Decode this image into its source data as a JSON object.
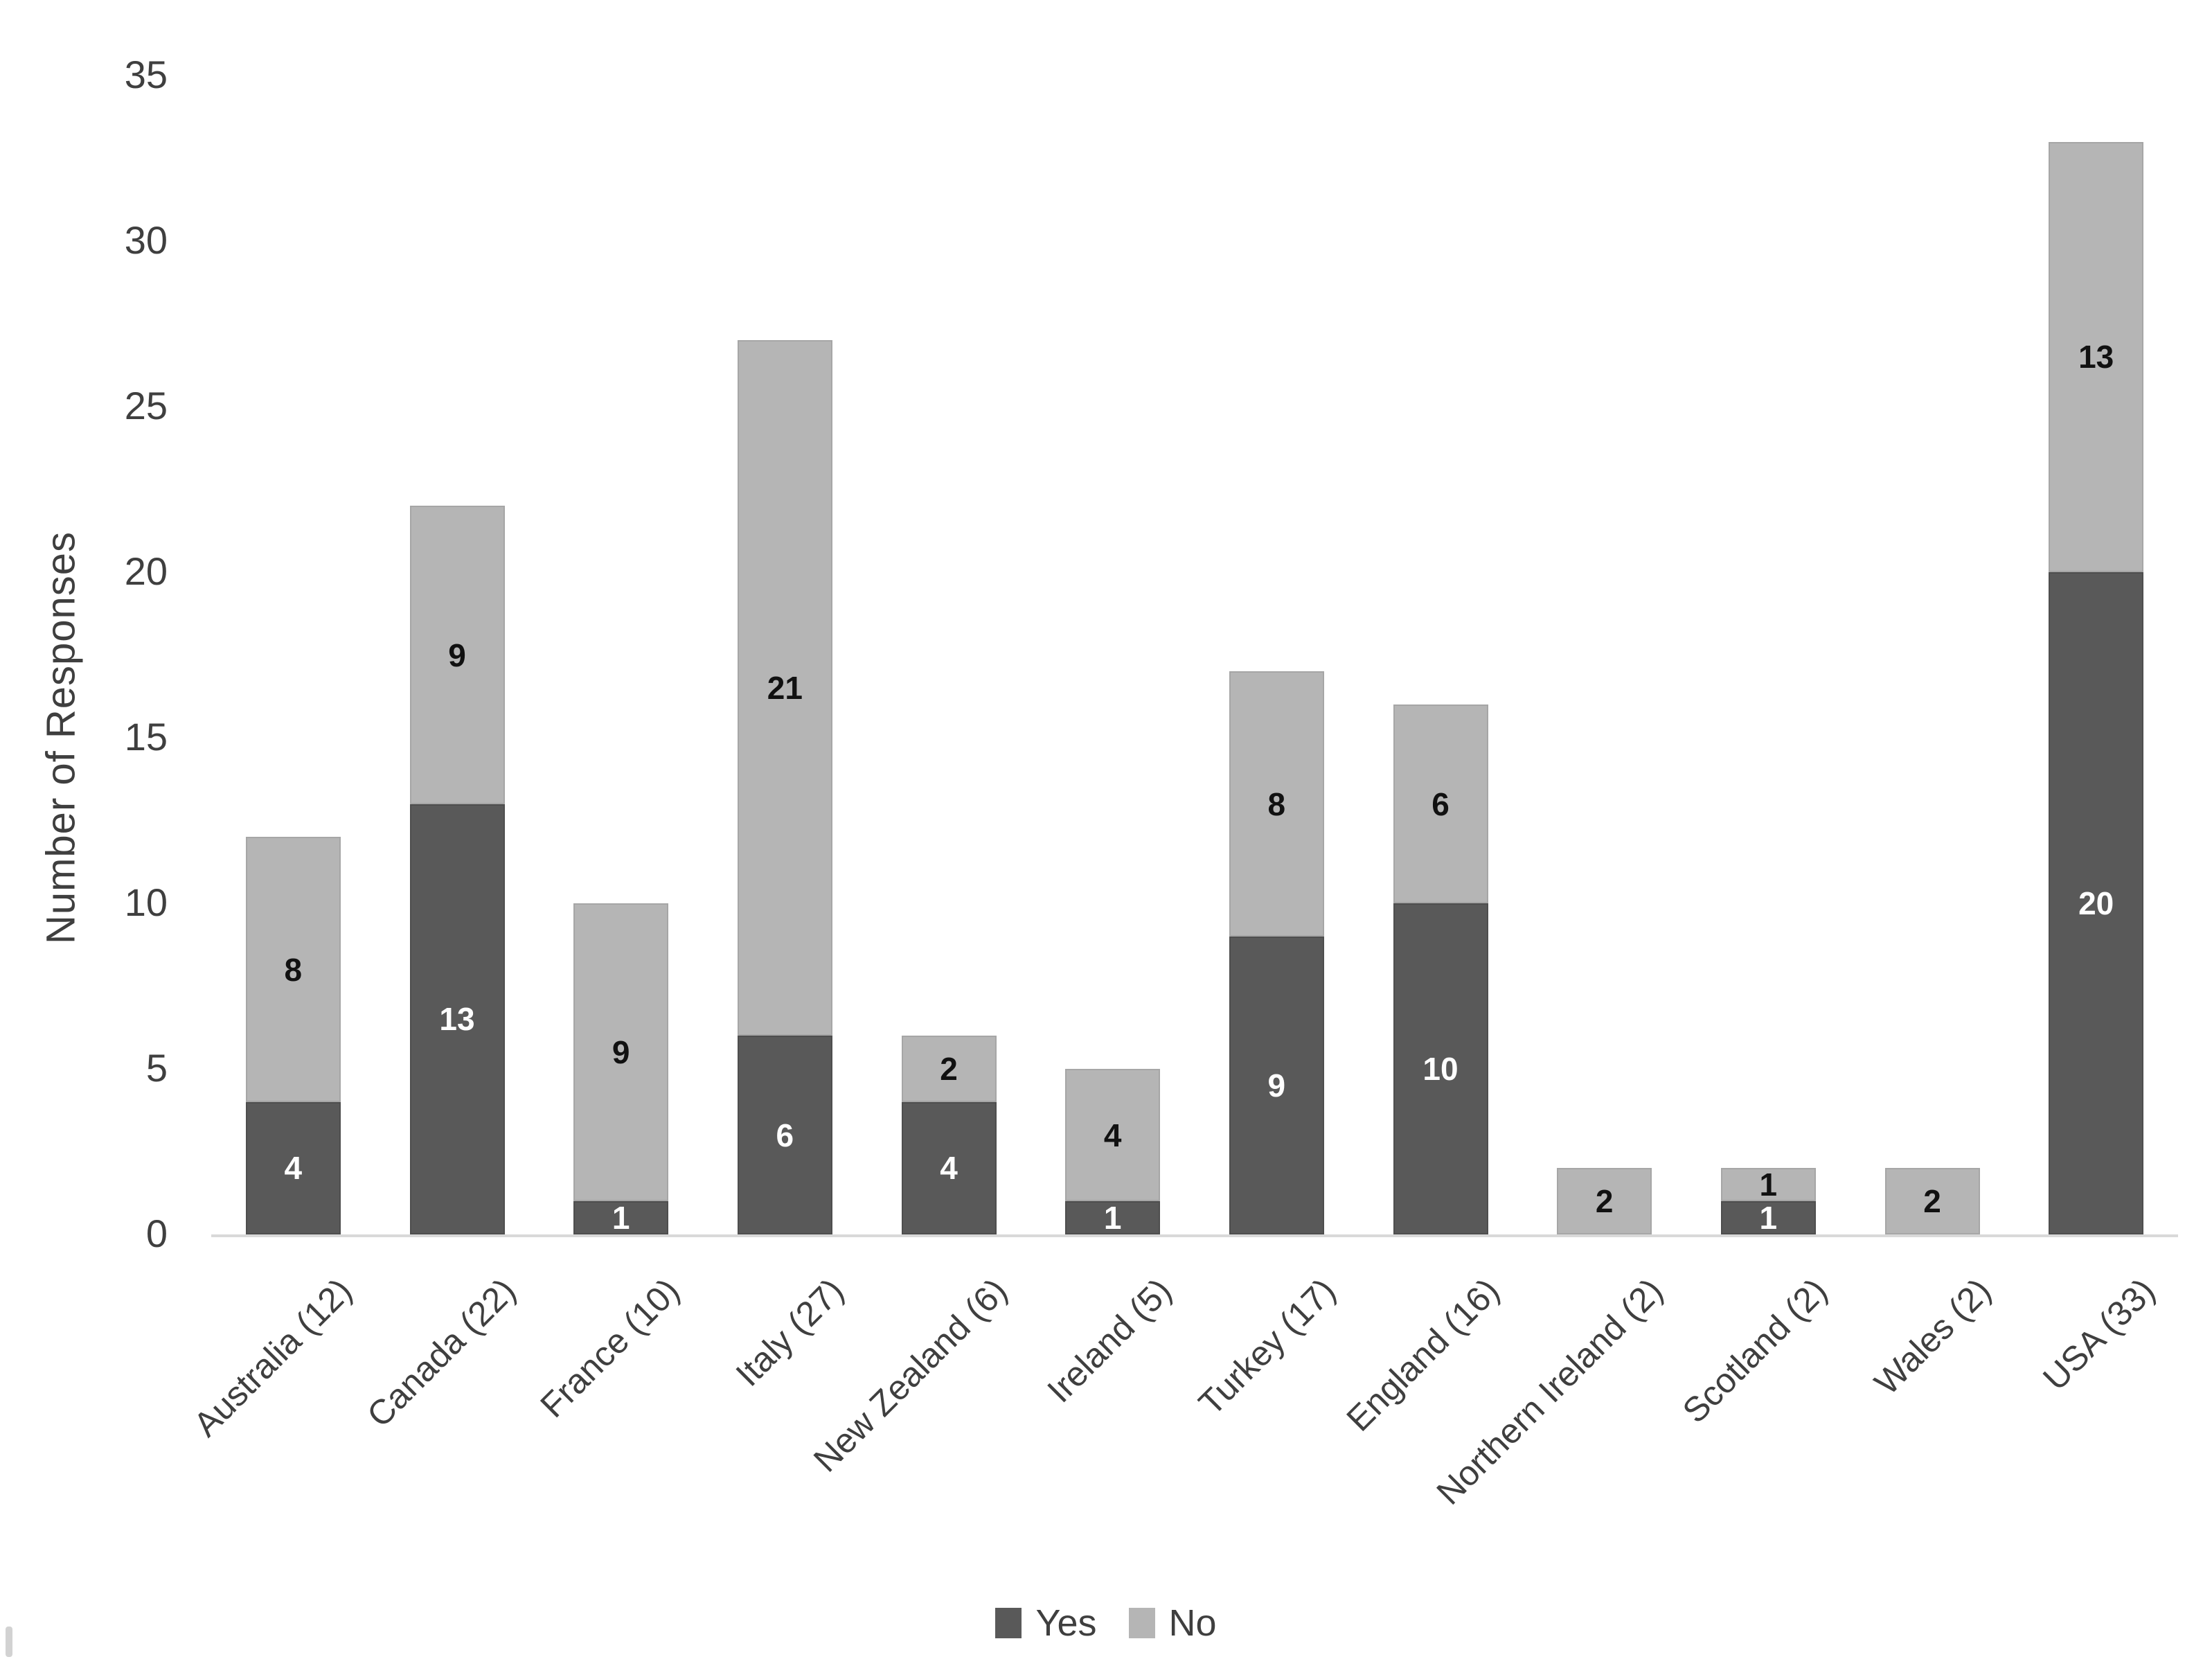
{
  "figure": {
    "background_color": "#ffffff",
    "axis_line_color": "#d9d9d9",
    "tick_label_color": "#3f3f3f"
  },
  "chart_data": {
    "type": "bar",
    "stacked": true,
    "title": "",
    "xlabel": "",
    "ylabel": "Number of Responses",
    "categories": [
      "Australia (12)",
      "Canada (22)",
      "France (10)",
      "Italy (27)",
      "New Zealand (6)",
      "Ireland (5)",
      "Turkey (17)",
      "England (16)",
      "Northern Ireland (2)",
      "Scotland (2)",
      "Wales (2)",
      "USA (33)"
    ],
    "series": [
      {
        "name": "Yes",
        "color": "#595959",
        "edge_color": "#4e4e4e",
        "label_color": "#ffffff",
        "values": [
          4,
          13,
          1,
          6,
          4,
          1,
          9,
          10,
          0,
          1,
          0,
          20
        ]
      },
      {
        "name": "No",
        "color": "#b5b5b5",
        "edge_color": "#a6a6a6",
        "label_color": "#111111",
        "values": [
          8,
          9,
          9,
          21,
          2,
          4,
          8,
          6,
          2,
          1,
          2,
          13
        ]
      }
    ],
    "totals": [
      12,
      22,
      10,
      27,
      6,
      5,
      17,
      16,
      2,
      2,
      2,
      33
    ],
    "ylim": [
      0,
      35
    ],
    "yticks": [
      0,
      5,
      10,
      15,
      20,
      25,
      30,
      35
    ],
    "grid": false,
    "data_labels": "center",
    "hide_zero_labels": true,
    "legend_position": "bottom",
    "legend": [
      "Yes",
      "No"
    ]
  }
}
